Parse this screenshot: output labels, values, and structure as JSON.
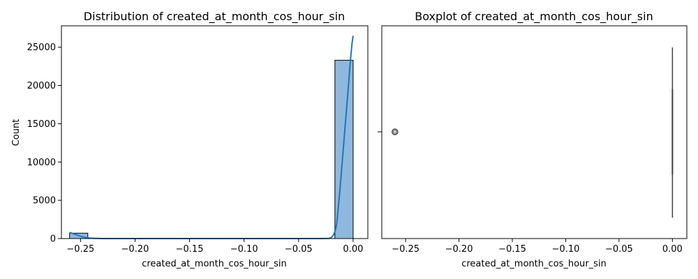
{
  "chart_data": [
    {
      "type": "bar",
      "title": "Distribution of created_at_month_cos_hour_sin",
      "xlabel": "created_at_month_cos_hour_sin",
      "ylabel": "Count",
      "xlim": [
        -0.2675,
        0.0135
      ],
      "ylim": [
        0,
        27800
      ],
      "xticks": [
        -0.25,
        -0.2,
        -0.15,
        -0.1,
        -0.05,
        0.0
      ],
      "xtick_labels": [
        "−0.25",
        "−0.20",
        "−0.15",
        "−0.10",
        "−0.05",
        "0.00"
      ],
      "yticks": [
        0,
        5000,
        10000,
        15000,
        20000,
        25000
      ],
      "ytick_labels": [
        "0",
        "5000",
        "10000",
        "15000",
        "20000",
        "25000"
      ],
      "bars": [
        {
          "x0": -0.26,
          "x1": -0.2433,
          "count": 700
        },
        {
          "x0": -0.0167,
          "x1": 0.0,
          "count": 23300
        }
      ],
      "bar_color": "#8fb8de",
      "kde": {
        "color": "#1f77b4",
        "x": [
          -0.26,
          -0.255,
          -0.25,
          -0.245,
          -0.24,
          -0.23,
          -0.2,
          -0.15,
          -0.1,
          -0.05,
          -0.03,
          -0.022,
          -0.02,
          -0.018,
          -0.016,
          -0.015,
          -0.014,
          -0.012,
          -0.01,
          -0.008,
          -0.006,
          -0.004,
          -0.003,
          -0.002,
          -0.001,
          0.0
        ],
        "y": [
          800,
          550,
          300,
          120,
          40,
          0,
          0,
          0,
          0,
          0,
          0,
          20,
          150,
          450,
          1200,
          2000,
          3500,
          6500,
          10000,
          13500,
          17000,
          20500,
          22500,
          24000,
          25500,
          26500
        ]
      },
      "grid": false
    },
    {
      "type": "boxplot",
      "title": "Boxplot of created_at_month_cos_hour_sin",
      "xlabel": "created_at_month_cos_hour_sin",
      "ylabel": "",
      "xlim": [
        -0.2723,
        0.0135
      ],
      "xticks": [
        -0.25,
        -0.2,
        -0.15,
        -0.1,
        -0.05,
        0.0
      ],
      "xtick_labels": [
        "−0.25",
        "−0.20",
        "−0.15",
        "−0.10",
        "−0.05",
        "0.00"
      ],
      "box": {
        "whisker_low": 0.0,
        "q1": 0.0,
        "median": 0.0,
        "q3": 0.0,
        "whisker_high": 0.0
      },
      "outliers": [
        -0.26
      ],
      "color": "#1f77b4",
      "grid": false
    }
  ]
}
